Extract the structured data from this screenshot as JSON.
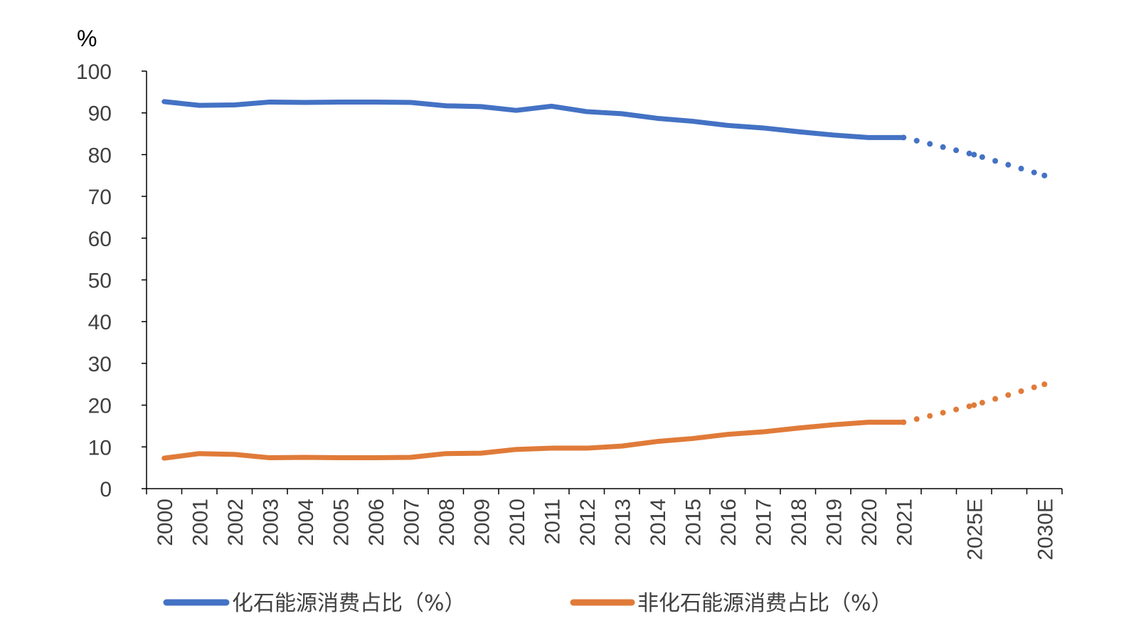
{
  "chart_data": {
    "type": "line",
    "title": "",
    "ylabel": "%",
    "xlabel": "",
    "ylim": [
      0,
      100
    ],
    "yticks": [
      0,
      10,
      20,
      30,
      40,
      50,
      60,
      70,
      80,
      90,
      100
    ],
    "categories": [
      "2000",
      "2001",
      "2002",
      "2003",
      "2004",
      "2005",
      "2006",
      "2007",
      "2008",
      "2009",
      "2010",
      "2011",
      "2012",
      "2013",
      "2014",
      "2015",
      "2016",
      "2017",
      "2018",
      "2019",
      "2020",
      "2021",
      "",
      "2025E",
      "",
      "2030E"
    ],
    "projection_start_index": 21,
    "series": [
      {
        "name": "化石能源消费占比（%）",
        "color": "#4472C4",
        "values": [
          92.7,
          91.8,
          91.9,
          92.6,
          92.5,
          92.6,
          92.6,
          92.5,
          91.7,
          91.5,
          90.6,
          91.6,
          90.3,
          89.8,
          88.7,
          88.0,
          87.0,
          86.4,
          85.5,
          84.7,
          84.1,
          84.1,
          null,
          80.0,
          null,
          75.0
        ]
      },
      {
        "name": "非化石能源消费占比（%）",
        "color": "#E07B39",
        "values": [
          7.3,
          8.4,
          8.2,
          7.4,
          7.5,
          7.4,
          7.4,
          7.5,
          8.4,
          8.5,
          9.4,
          9.7,
          9.7,
          10.2,
          11.3,
          12.0,
          13.0,
          13.6,
          14.5,
          15.3,
          15.9,
          15.9,
          null,
          20.0,
          null,
          25.0
        ]
      }
    ],
    "grid": false,
    "legend": "bottom"
  }
}
